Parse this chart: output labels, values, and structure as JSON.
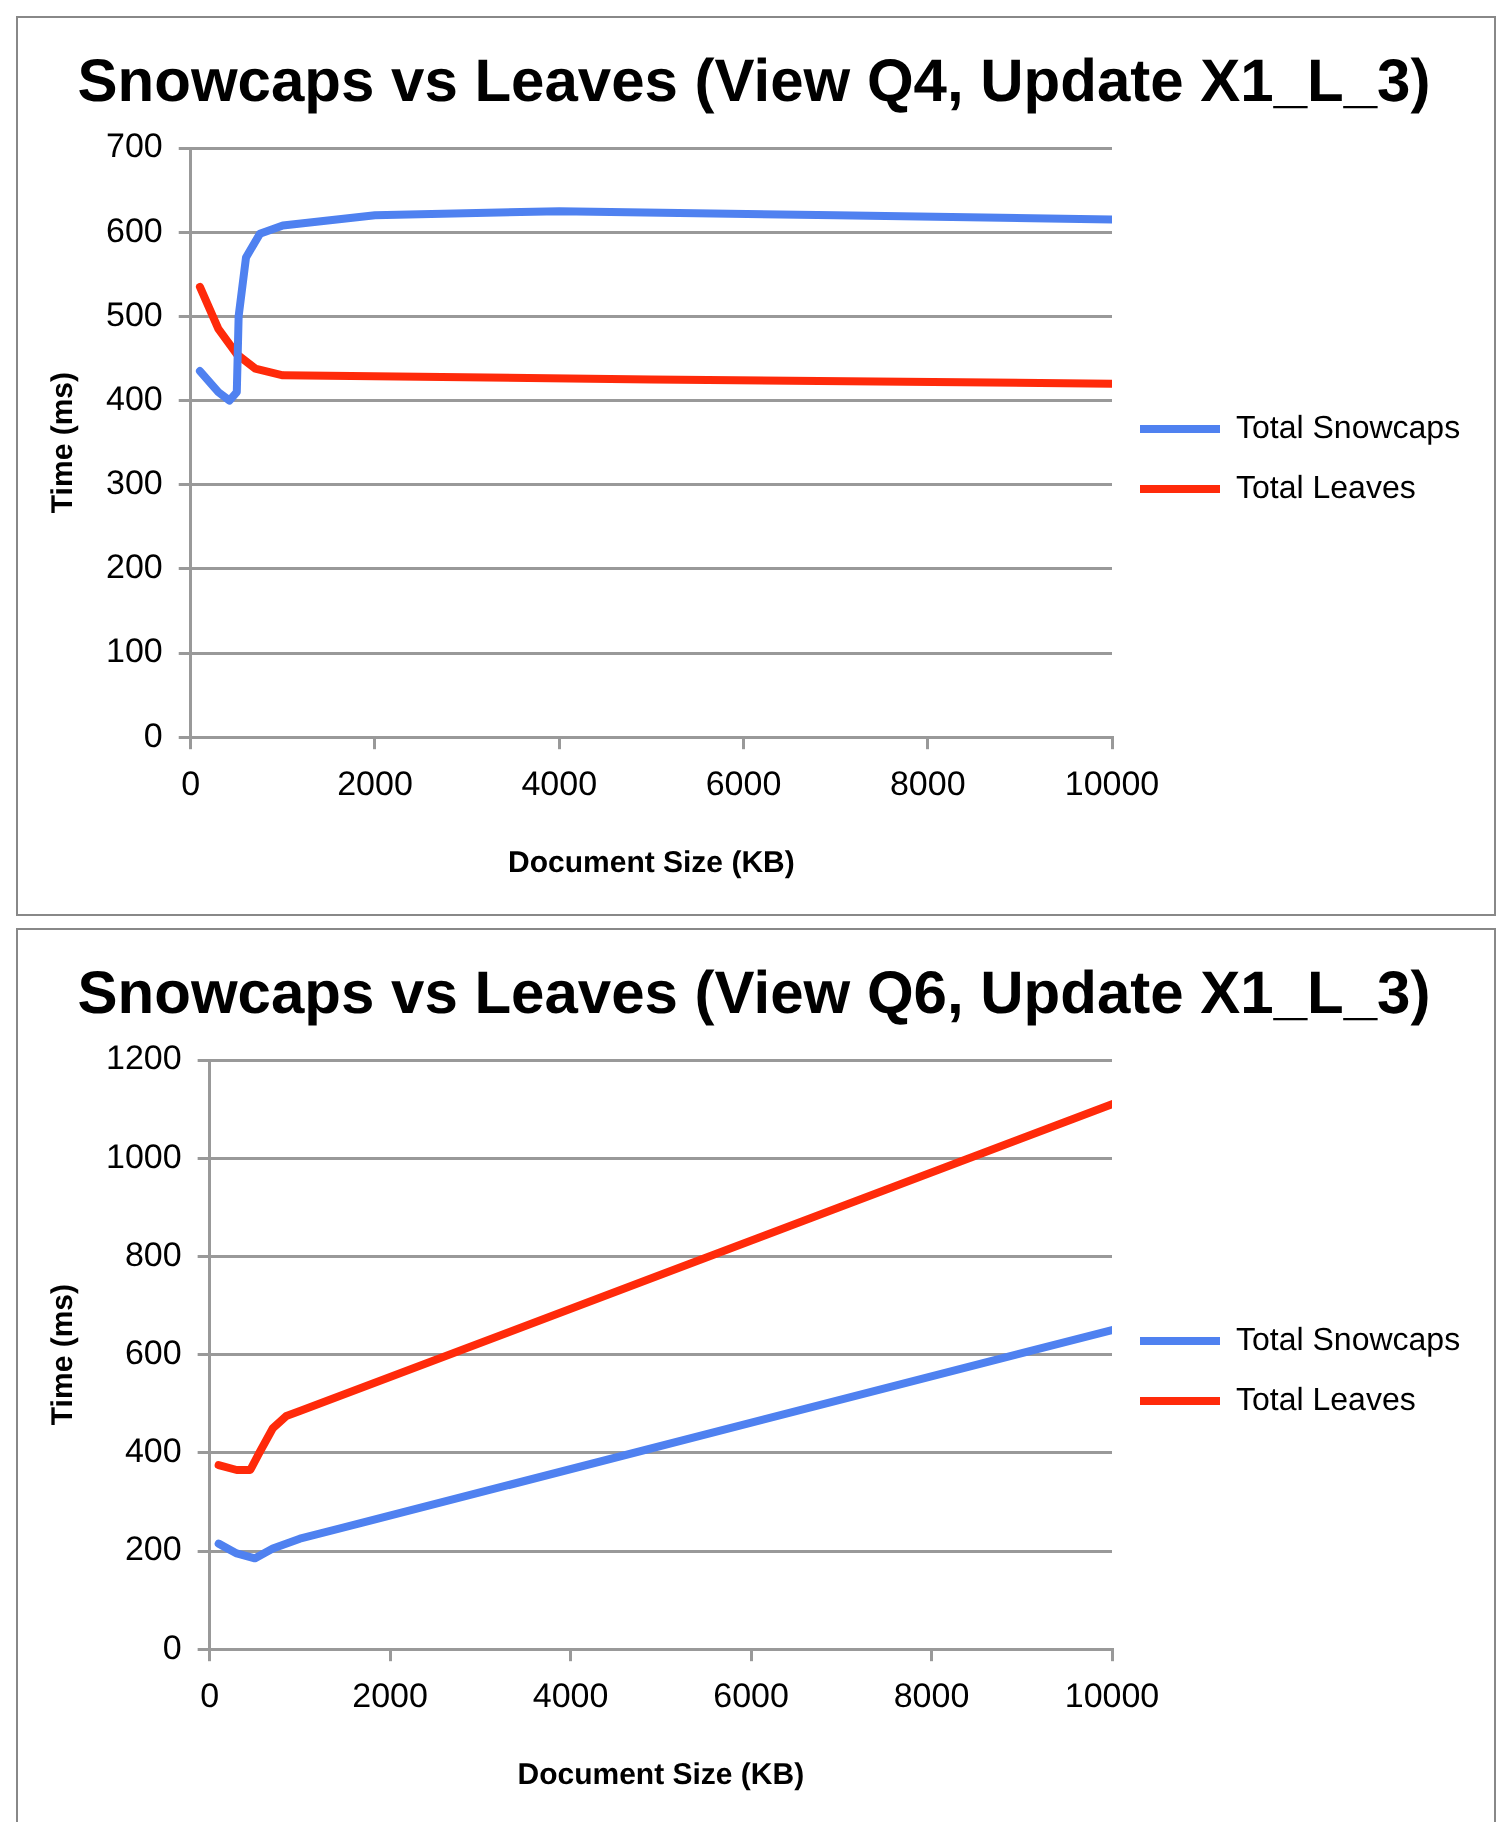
{
  "chart_data": [
    {
      "type": "line",
      "title": "Snowcaps vs Leaves (View Q4, Update X1_L_3)",
      "xlabel": "Document Size (KB)",
      "ylabel": "Time (ms)",
      "xlim": [
        0,
        10000
      ],
      "xticks": [
        0,
        2000,
        4000,
        6000,
        8000,
        10000
      ],
      "ylim": [
        0,
        700
      ],
      "yticks": [
        0,
        100,
        200,
        300,
        400,
        500,
        600,
        700
      ],
      "grid": "y",
      "legend": "right",
      "marker": "none",
      "series": [
        {
          "name": "Total Snowcaps",
          "color": "#4f81f0",
          "x": [
            100,
            300,
            420,
            500,
            520,
            600,
            750,
            1000,
            2000,
            4000,
            7000,
            10000
          ],
          "values": [
            435,
            410,
            400,
            410,
            500,
            570,
            598,
            608,
            620,
            625,
            620,
            615
          ]
        },
        {
          "name": "Total Leaves",
          "color": "#ff2a0a",
          "x": [
            100,
            300,
            500,
            700,
            1000,
            5000,
            10000
          ],
          "values": [
            535,
            485,
            455,
            438,
            430,
            425,
            420
          ]
        }
      ]
    },
    {
      "type": "line",
      "title": "Snowcaps vs Leaves (View Q6, Update X1_L_3)",
      "xlabel": "Document Size (KB)",
      "ylabel": "Time (ms)",
      "xlim": [
        0,
        10000
      ],
      "xticks": [
        0,
        2000,
        4000,
        6000,
        8000,
        10000
      ],
      "ylim": [
        0,
        1200
      ],
      "yticks": [
        0,
        200,
        400,
        600,
        800,
        1000,
        1200
      ],
      "grid": "y",
      "legend": "right",
      "marker": "none",
      "series": [
        {
          "name": "Total Snowcaps",
          "color": "#4f81f0",
          "x": [
            100,
            300,
            500,
            700,
            1000,
            10000
          ],
          "values": [
            215,
            195,
            185,
            205,
            225,
            650
          ]
        },
        {
          "name": "Total Leaves",
          "color": "#ff2a0a",
          "x": [
            100,
            300,
            450,
            550,
            700,
            850,
            1000,
            10000
          ],
          "values": [
            375,
            365,
            365,
            400,
            450,
            475,
            485,
            1110
          ]
        }
      ]
    }
  ]
}
